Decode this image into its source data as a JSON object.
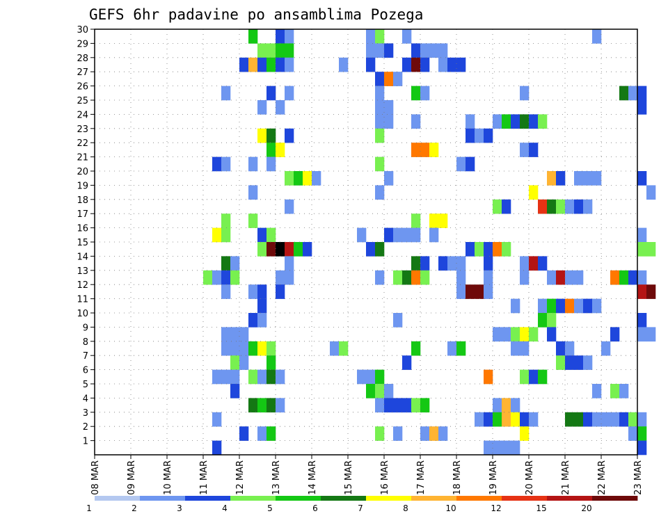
{
  "chart_data": {
    "type": "heatmap",
    "title": "GEFS 6hr padavine po ansamblima Pozega",
    "x_ticks": [
      "08 MAR",
      "09 MAR",
      "10 MAR",
      "11 MAR",
      "12 MAR",
      "13 MAR",
      "14 MAR",
      "15 MAR",
      "16 MAR",
      "17 MAR",
      "18 MAR",
      "19 MAR",
      "20 MAR",
      "21 MAR",
      "22 MAR",
      "23 MAR"
    ],
    "x_range": [
      "08 MAR",
      "23 MAR"
    ],
    "y_ticks": [
      "1",
      "2",
      "3",
      "4",
      "5",
      "6",
      "7",
      "8",
      "9",
      "10",
      "11",
      "12",
      "13",
      "14",
      "15",
      "16",
      "17",
      "18",
      "19",
      "20",
      "21",
      "22",
      "23",
      "24",
      "25",
      "26",
      "27",
      "28",
      "29",
      "30"
    ],
    "y_range": [
      0,
      30
    ],
    "grid": true,
    "legend": {
      "placement": "bottom",
      "labels": [
        "1",
        "2",
        "3",
        "4",
        "5",
        "6",
        "7",
        "8",
        "10",
        "12",
        "15",
        "20"
      ],
      "colors": [
        "#b4c8f0",
        "#6e96f0",
        "#1e46dc",
        "#78f050",
        "#14c814",
        "#147814",
        "#ffff00",
        "#ffb432",
        "#ff7800",
        "#e63214",
        "#b41414",
        "#6e0a0a"
      ]
    },
    "cells": [
      [
        30,
        12.25,
        4
      ],
      [
        30,
        13,
        2
      ],
      [
        30,
        13.25,
        1
      ],
      [
        30,
        15.5,
        1
      ],
      [
        30,
        15.75,
        3
      ],
      [
        30,
        16.5,
        1
      ],
      [
        30,
        21.75,
        1
      ],
      [
        29,
        12.5,
        3
      ],
      [
        29,
        12.75,
        3
      ],
      [
        29,
        13,
        4
      ],
      [
        29,
        13.25,
        4
      ],
      [
        29,
        15.5,
        1
      ],
      [
        29,
        15.75,
        1
      ],
      [
        29,
        16,
        2
      ],
      [
        29,
        16.75,
        2
      ],
      [
        29,
        17,
        1
      ],
      [
        29,
        17.25,
        1
      ],
      [
        29,
        17.5,
        1
      ],
      [
        28,
        12,
        2
      ],
      [
        28,
        12.25,
        7
      ],
      [
        28,
        12.5,
        2
      ],
      [
        28,
        12.75,
        4
      ],
      [
        28,
        13,
        2
      ],
      [
        28,
        13.25,
        1
      ],
      [
        28,
        14.75,
        1
      ],
      [
        28,
        15.5,
        2
      ],
      [
        28,
        16.5,
        2
      ],
      [
        28,
        16.75,
        11
      ],
      [
        28,
        17,
        2
      ],
      [
        28,
        17.5,
        1
      ],
      [
        28,
        17.75,
        2
      ],
      [
        28,
        18,
        2
      ],
      [
        27,
        15.75,
        2
      ],
      [
        27,
        16,
        8
      ],
      [
        27,
        16.25,
        1
      ],
      [
        26,
        11.5,
        1
      ],
      [
        26,
        12.75,
        2
      ],
      [
        26,
        13.25,
        1
      ],
      [
        26,
        15.75,
        1
      ],
      [
        26,
        16.75,
        4
      ],
      [
        26,
        17,
        1
      ],
      [
        26,
        19.75,
        1
      ],
      [
        26,
        22.5,
        5
      ],
      [
        26,
        22.75,
        1
      ],
      [
        26,
        23,
        2
      ],
      [
        25,
        12.5,
        1
      ],
      [
        25,
        13,
        1
      ],
      [
        25,
        15.75,
        1
      ],
      [
        25,
        16,
        1
      ],
      [
        25,
        23,
        2
      ],
      [
        24,
        15.75,
        1
      ],
      [
        24,
        16,
        1
      ],
      [
        24,
        16.75,
        1
      ],
      [
        24,
        18.25,
        1
      ],
      [
        24,
        19,
        1
      ],
      [
        24,
        19.25,
        4
      ],
      [
        24,
        19.5,
        2
      ],
      [
        24,
        19.75,
        5
      ],
      [
        24,
        20,
        2
      ],
      [
        24,
        20.25,
        3
      ],
      [
        23,
        12.5,
        6
      ],
      [
        23,
        12.75,
        5
      ],
      [
        23,
        13.25,
        2
      ],
      [
        23,
        15.75,
        3
      ],
      [
        23,
        18.25,
        2
      ],
      [
        23,
        18.5,
        1
      ],
      [
        23,
        18.75,
        2
      ],
      [
        22,
        12.75,
        4
      ],
      [
        22,
        13,
        6
      ],
      [
        22,
        16.75,
        8
      ],
      [
        22,
        17,
        8
      ],
      [
        22,
        17.25,
        6
      ],
      [
        22,
        19.75,
        1
      ],
      [
        22,
        20,
        2
      ],
      [
        21,
        11.25,
        2
      ],
      [
        21,
        11.5,
        1
      ],
      [
        21,
        12.25,
        1
      ],
      [
        21,
        12.75,
        1
      ],
      [
        21,
        15.75,
        3
      ],
      [
        21,
        18,
        1
      ],
      [
        21,
        18.25,
        2
      ],
      [
        20,
        13.25,
        3
      ],
      [
        20,
        13.5,
        4
      ],
      [
        20,
        13.75,
        6
      ],
      [
        20,
        14,
        1
      ],
      [
        20,
        16,
        1
      ],
      [
        20,
        20.5,
        7
      ],
      [
        20,
        20.75,
        2
      ],
      [
        20,
        21.25,
        1
      ],
      [
        20,
        21.5,
        1
      ],
      [
        20,
        21.75,
        1
      ],
      [
        20,
        23,
        2
      ],
      [
        19,
        12.25,
        1
      ],
      [
        19,
        15.75,
        1
      ],
      [
        19,
        20,
        6
      ],
      [
        19,
        23.25,
        1
      ],
      [
        18,
        13.25,
        1
      ],
      [
        18,
        19,
        3
      ],
      [
        18,
        19.25,
        2
      ],
      [
        18,
        20.25,
        9
      ],
      [
        18,
        20.5,
        5
      ],
      [
        18,
        20.75,
        3
      ],
      [
        18,
        21,
        1
      ],
      [
        18,
        21.25,
        2
      ],
      [
        18,
        21.5,
        1
      ],
      [
        17,
        11.5,
        3
      ],
      [
        17,
        12.25,
        3
      ],
      [
        17,
        16.75,
        3
      ],
      [
        17,
        17.25,
        6
      ],
      [
        17,
        17.5,
        6
      ],
      [
        16,
        11.25,
        6
      ],
      [
        16,
        11.5,
        3
      ],
      [
        16,
        12.5,
        2
      ],
      [
        16,
        12.75,
        3
      ],
      [
        16,
        15.25,
        1
      ],
      [
        16,
        16,
        2
      ],
      [
        16,
        16.25,
        1
      ],
      [
        16,
        16.5,
        1
      ],
      [
        16,
        16.75,
        1
      ],
      [
        16,
        17.25,
        1
      ],
      [
        16,
        23,
        1
      ],
      [
        15,
        12.5,
        3
      ],
      [
        15,
        12.75,
        11
      ],
      [
        15,
        13,
        12
      ],
      [
        15,
        13.25,
        10
      ],
      [
        15,
        13.5,
        4
      ],
      [
        15,
        13.75,
        2
      ],
      [
        15,
        15.5,
        2
      ],
      [
        15,
        15.75,
        5
      ],
      [
        15,
        18.25,
        2
      ],
      [
        15,
        18.5,
        3
      ],
      [
        15,
        18.75,
        2
      ],
      [
        15,
        19,
        8
      ],
      [
        15,
        19.25,
        3
      ],
      [
        15,
        23,
        3
      ],
      [
        15,
        23.25,
        3
      ],
      [
        14,
        11.5,
        5
      ],
      [
        14,
        11.75,
        1
      ],
      [
        14,
        13.25,
        1
      ],
      [
        14,
        16.75,
        5
      ],
      [
        14,
        17,
        2
      ],
      [
        14,
        17.5,
        2
      ],
      [
        14,
        17.75,
        1
      ],
      [
        14,
        18,
        1
      ],
      [
        14,
        18.75,
        2
      ],
      [
        14,
        19.75,
        1
      ],
      [
        14,
        20,
        10
      ],
      [
        14,
        20.25,
        2
      ],
      [
        13,
        11,
        3
      ],
      [
        13,
        11.25,
        1
      ],
      [
        13,
        11.5,
        2
      ],
      [
        13,
        11.75,
        3
      ],
      [
        13,
        13,
        1
      ],
      [
        13,
        13.25,
        1
      ],
      [
        13,
        15.75,
        1
      ],
      [
        13,
        16.25,
        3
      ],
      [
        13,
        16.5,
        5
      ],
      [
        13,
        16.75,
        8
      ],
      [
        13,
        17,
        3
      ],
      [
        13,
        18,
        1
      ],
      [
        13,
        18.75,
        1
      ],
      [
        13,
        19.75,
        1
      ],
      [
        13,
        20.5,
        1
      ],
      [
        13,
        20.75,
        10
      ],
      [
        13,
        21,
        1
      ],
      [
        13,
        21.25,
        1
      ],
      [
        13,
        22.25,
        8
      ],
      [
        13,
        22.5,
        4
      ],
      [
        13,
        22.75,
        2
      ],
      [
        13,
        23,
        1
      ],
      [
        12,
        11.5,
        1
      ],
      [
        12,
        12.25,
        1
      ],
      [
        12,
        12.5,
        2
      ],
      [
        12,
        13,
        2
      ],
      [
        12,
        18,
        1
      ],
      [
        12,
        18.25,
        11
      ],
      [
        12,
        18.5,
        11
      ],
      [
        12,
        18.75,
        1
      ],
      [
        12,
        23,
        10
      ],
      [
        12,
        23.25,
        11
      ],
      [
        11,
        12.5,
        2
      ],
      [
        11,
        19.5,
        1
      ],
      [
        11,
        20.25,
        1
      ],
      [
        11,
        20.5,
        4
      ],
      [
        11,
        20.75,
        2
      ],
      [
        11,
        21,
        8
      ],
      [
        11,
        21.25,
        1
      ],
      [
        11,
        21.5,
        2
      ],
      [
        11,
        21.75,
        1
      ],
      [
        10,
        12.25,
        2
      ],
      [
        10,
        12.5,
        1
      ],
      [
        10,
        16.25,
        1
      ],
      [
        10,
        20.25,
        4
      ],
      [
        10,
        20.5,
        3
      ],
      [
        10,
        23,
        2
      ],
      [
        9,
        11.5,
        1
      ],
      [
        9,
        11.75,
        1
      ],
      [
        9,
        12,
        1
      ],
      [
        9,
        19,
        1
      ],
      [
        9,
        19.25,
        1
      ],
      [
        9,
        19.5,
        3
      ],
      [
        9,
        19.75,
        6
      ],
      [
        9,
        20,
        3
      ],
      [
        9,
        20.5,
        2
      ],
      [
        9,
        22.25,
        2
      ],
      [
        9,
        23,
        1
      ],
      [
        9,
        23.25,
        1
      ],
      [
        8,
        11.5,
        1
      ],
      [
        8,
        11.75,
        1
      ],
      [
        8,
        12,
        1
      ],
      [
        8,
        12.25,
        4
      ],
      [
        8,
        12.5,
        6
      ],
      [
        8,
        12.75,
        3
      ],
      [
        8,
        14.5,
        1
      ],
      [
        8,
        14.75,
        3
      ],
      [
        8,
        16.75,
        4
      ],
      [
        8,
        17.75,
        1
      ],
      [
        8,
        18,
        4
      ],
      [
        8,
        19.5,
        1
      ],
      [
        8,
        19.75,
        1
      ],
      [
        8,
        20.75,
        2
      ],
      [
        8,
        21,
        1
      ],
      [
        8,
        22,
        1
      ],
      [
        7,
        11.75,
        3
      ],
      [
        7,
        12,
        1
      ],
      [
        7,
        12.75,
        4
      ],
      [
        7,
        16.5,
        2
      ],
      [
        7,
        20.75,
        3
      ],
      [
        7,
        21,
        2
      ],
      [
        7,
        21.25,
        2
      ],
      [
        7,
        21.5,
        1
      ],
      [
        6,
        11.25,
        1
      ],
      [
        6,
        11.5,
        1
      ],
      [
        6,
        11.75,
        1
      ],
      [
        6,
        12.25,
        3
      ],
      [
        6,
        12.5,
        1
      ],
      [
        6,
        12.75,
        5
      ],
      [
        6,
        13,
        1
      ],
      [
        6,
        15.25,
        1
      ],
      [
        6,
        15.5,
        1
      ],
      [
        6,
        15.75,
        4
      ],
      [
        6,
        18.75,
        8
      ],
      [
        6,
        19.75,
        3
      ],
      [
        6,
        20,
        2
      ],
      [
        6,
        20.25,
        4
      ],
      [
        5,
        11.75,
        2
      ],
      [
        5,
        15.5,
        4
      ],
      [
        5,
        15.75,
        3
      ],
      [
        5,
        16,
        1
      ],
      [
        5,
        21.75,
        1
      ],
      [
        5,
        22.25,
        3
      ],
      [
        5,
        22.5,
        1
      ],
      [
        4,
        12.25,
        5
      ],
      [
        4,
        12.5,
        4
      ],
      [
        4,
        12.75,
        5
      ],
      [
        4,
        13,
        1
      ],
      [
        4,
        15.75,
        1
      ],
      [
        4,
        16,
        2
      ],
      [
        4,
        16.25,
        2
      ],
      [
        4,
        16.5,
        2
      ],
      [
        4,
        16.75,
        3
      ],
      [
        4,
        17,
        4
      ],
      [
        4,
        19,
        1
      ],
      [
        4,
        19.25,
        7
      ],
      [
        4,
        19.5,
        1
      ],
      [
        3,
        11.25,
        1
      ],
      [
        3,
        18.5,
        1
      ],
      [
        3,
        18.75,
        2
      ],
      [
        3,
        19,
        4
      ],
      [
        3,
        19.25,
        7
      ],
      [
        3,
        19.5,
        6
      ],
      [
        3,
        19.75,
        2
      ],
      [
        3,
        20,
        1
      ],
      [
        3,
        21,
        5
      ],
      [
        3,
        21.25,
        5
      ],
      [
        3,
        21.5,
        2
      ],
      [
        3,
        21.75,
        1
      ],
      [
        3,
        22,
        1
      ],
      [
        3,
        22.25,
        1
      ],
      [
        3,
        22.5,
        2
      ],
      [
        3,
        22.75,
        3
      ],
      [
        3,
        23,
        1
      ],
      [
        2,
        12,
        2
      ],
      [
        2,
        12.5,
        1
      ],
      [
        2,
        12.75,
        4
      ],
      [
        2,
        15.75,
        3
      ],
      [
        2,
        16.25,
        1
      ],
      [
        2,
        17,
        1
      ],
      [
        2,
        17.25,
        7
      ],
      [
        2,
        17.5,
        1
      ],
      [
        2,
        19.75,
        6
      ],
      [
        2,
        22.75,
        1
      ],
      [
        2,
        23,
        4
      ],
      [
        1,
        11.25,
        2
      ],
      [
        1,
        18.75,
        1
      ],
      [
        1,
        19,
        1
      ],
      [
        1,
        19.25,
        1
      ],
      [
        1,
        19.5,
        1
      ],
      [
        1,
        23,
        2
      ]
    ]
  }
}
